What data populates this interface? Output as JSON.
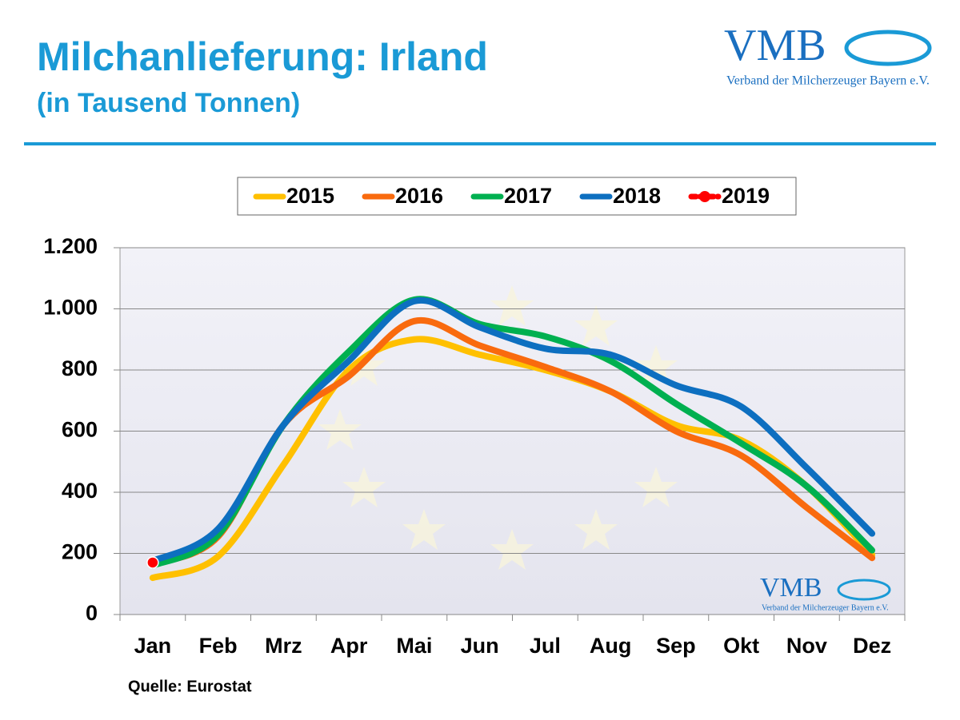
{
  "chart_data": {
    "type": "line",
    "title": "Milchanlieferung: Irland",
    "subtitle": "(in Tausend Tonnen)",
    "source": "Quelle: Eurostat",
    "logo": {
      "name": "VMB",
      "tagline": "Verband der Milcherzeuger Bayern e.V."
    },
    "categories": [
      "Jan",
      "Feb",
      "Mrz",
      "Apr",
      "Mai",
      "Jun",
      "Jul",
      "Aug",
      "Sep",
      "Okt",
      "Nov",
      "Dez"
    ],
    "series": [
      {
        "name": "2015",
        "color": "#ffc000",
        "values": [
          120,
          190,
          490,
          800,
          900,
          850,
          800,
          730,
          620,
          570,
          420,
          195
        ]
      },
      {
        "name": "2016",
        "color": "#f96a0e",
        "values": [
          165,
          255,
          620,
          780,
          960,
          880,
          810,
          730,
          600,
          520,
          350,
          185
        ]
      },
      {
        "name": "2017",
        "color": "#00b050",
        "values": [
          160,
          260,
          620,
          860,
          1030,
          950,
          910,
          830,
          690,
          560,
          420,
          210
        ]
      },
      {
        "name": "2018",
        "color": "#0d6fc0",
        "values": [
          175,
          280,
          620,
          830,
          1025,
          940,
          870,
          850,
          750,
          680,
          480,
          265
        ]
      },
      {
        "name": "2019",
        "color": "#ff0000",
        "values": [
          170,
          null,
          null,
          null,
          null,
          null,
          null,
          null,
          null,
          null,
          null,
          null
        ]
      }
    ],
    "ylim": [
      0,
      1200
    ],
    "yticks": [
      0,
      200,
      400,
      600,
      800,
      {
        "value": 1000,
        "label": "1.000"
      },
      {
        "value": 1200,
        "label": "1.200"
      }
    ],
    "grid": true
  }
}
